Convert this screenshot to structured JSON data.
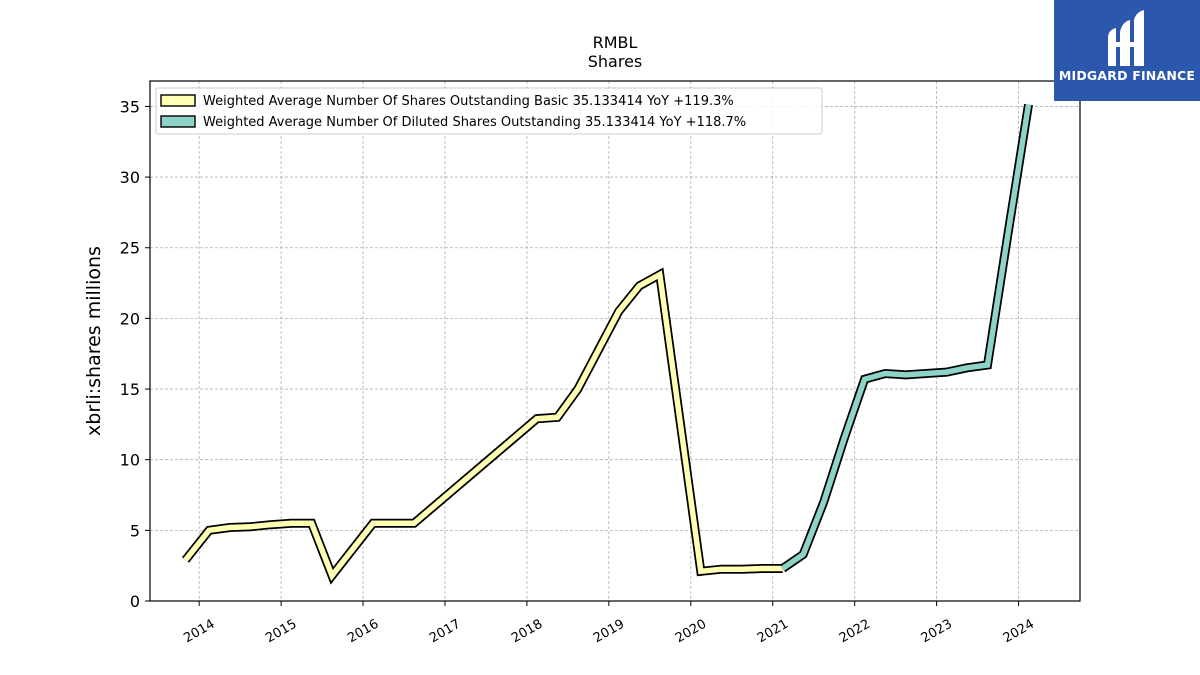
{
  "brand": {
    "name": "MIDGARD FINANCE",
    "color": "#2b57ad",
    "icon": "midgard-logo-icon"
  },
  "chart_data": {
    "type": "line",
    "title": "RMBL",
    "subtitle": "Shares",
    "ylabel": "xbrli:shares millions",
    "xlabel": "",
    "ylim": [
      0,
      36.8
    ],
    "xlim": [
      2013.4,
      2024.75
    ],
    "yticks": [
      "0",
      "5",
      "10",
      "15",
      "20",
      "25",
      "30",
      "35"
    ],
    "xticks": [
      "2014",
      "2015",
      "2016",
      "2017",
      "2018",
      "2019",
      "2020",
      "2021",
      "2022",
      "2023",
      "2024"
    ],
    "grid": true,
    "legend_position": "top-left",
    "series": [
      {
        "name": "Weighted Average Number Of Shares Outstanding Basic",
        "legend_label": "Weighted Average Number Of Shares Outstanding Basic  35.133414 YoY +119.3%",
        "color": "#ffffb3",
        "x": [
          "2013-11-01",
          "2014-02-15",
          "2014-05-15",
          "2014-08-15",
          "2014-11-15",
          "2015-02-15",
          "2015-05-15",
          "2015-08-15",
          "2016-02-15",
          "2016-05-15",
          "2016-08-15",
          "2018-02-15",
          "2018-05-15",
          "2018-08-15",
          "2019-02-15",
          "2019-05-15",
          "2019-08-15",
          "2020-02-15",
          "2020-05-15",
          "2020-08-15",
          "2020-11-15",
          "2021-02-15"
        ],
        "y": [
          2.9,
          5.0,
          5.2,
          5.25,
          5.4,
          5.5,
          5.5,
          1.8,
          5.5,
          5.5,
          5.5,
          12.9,
          13.0,
          15.0,
          20.5,
          22.3,
          23.1,
          2.1,
          2.25,
          2.25,
          2.3,
          2.3
        ]
      },
      {
        "name": "Weighted Average Number Of Diluted Shares Outstanding",
        "legend_label": "Weighted Average Number Of Diluted Shares Outstanding  35.133414 YoY +118.7%",
        "color": "#8dd3c7",
        "x": [
          "2021-02-15",
          "2021-05-15",
          "2021-08-15",
          "2021-11-15",
          "2022-02-15",
          "2022-05-15",
          "2022-08-15",
          "2022-11-15",
          "2023-02-15",
          "2023-05-15",
          "2023-08-15",
          "2023-11-15",
          "2024-02-15"
        ],
        "y": [
          2.3,
          3.3,
          7.0,
          11.5,
          15.7,
          16.1,
          16.0,
          16.1,
          16.2,
          16.5,
          16.7,
          26.0,
          35.13
        ]
      }
    ]
  }
}
